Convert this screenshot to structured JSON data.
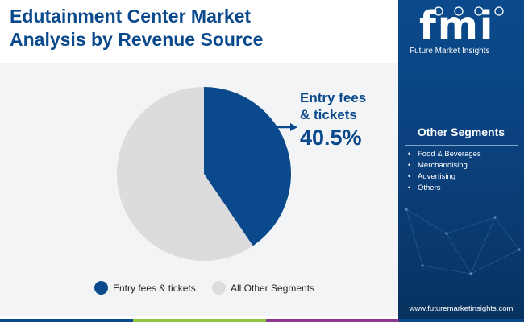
{
  "header": {
    "title_line1": "Edutainment Center Market",
    "title_line2": "Analysis by Revenue Source"
  },
  "logo": {
    "letters": "fmi",
    "caption": "Future Market Insights"
  },
  "sidebar": {
    "other_segments_title": "Other Segments",
    "other_segments": [
      "Food & Beverages",
      "Merchandising",
      "Advertising",
      "Others"
    ],
    "website": "www.futuremarketinsights.com"
  },
  "callout": {
    "label_line1": "Entry fees",
    "label_line2": "& tickets",
    "value_text": "40.5%"
  },
  "colors": {
    "primary": "#0a4a8c",
    "other": "#dcdcde",
    "bar_colors": [
      "#0a4a8c",
      "#8dc63f",
      "#8b3a8f",
      "#0a4a8c"
    ]
  },
  "chart_data": {
    "type": "pie",
    "title": "Edutainment Center Market Analysis by Revenue Source",
    "slices": [
      {
        "name": "Entry fees & tickets",
        "value": 40.5,
        "color": "#0a4a8c"
      },
      {
        "name": "All Other Segments",
        "value": 59.5,
        "color": "#dcdcde"
      }
    ],
    "legend": [
      "Entry fees & tickets",
      "All Other Segments"
    ],
    "legend_position": "bottom"
  }
}
